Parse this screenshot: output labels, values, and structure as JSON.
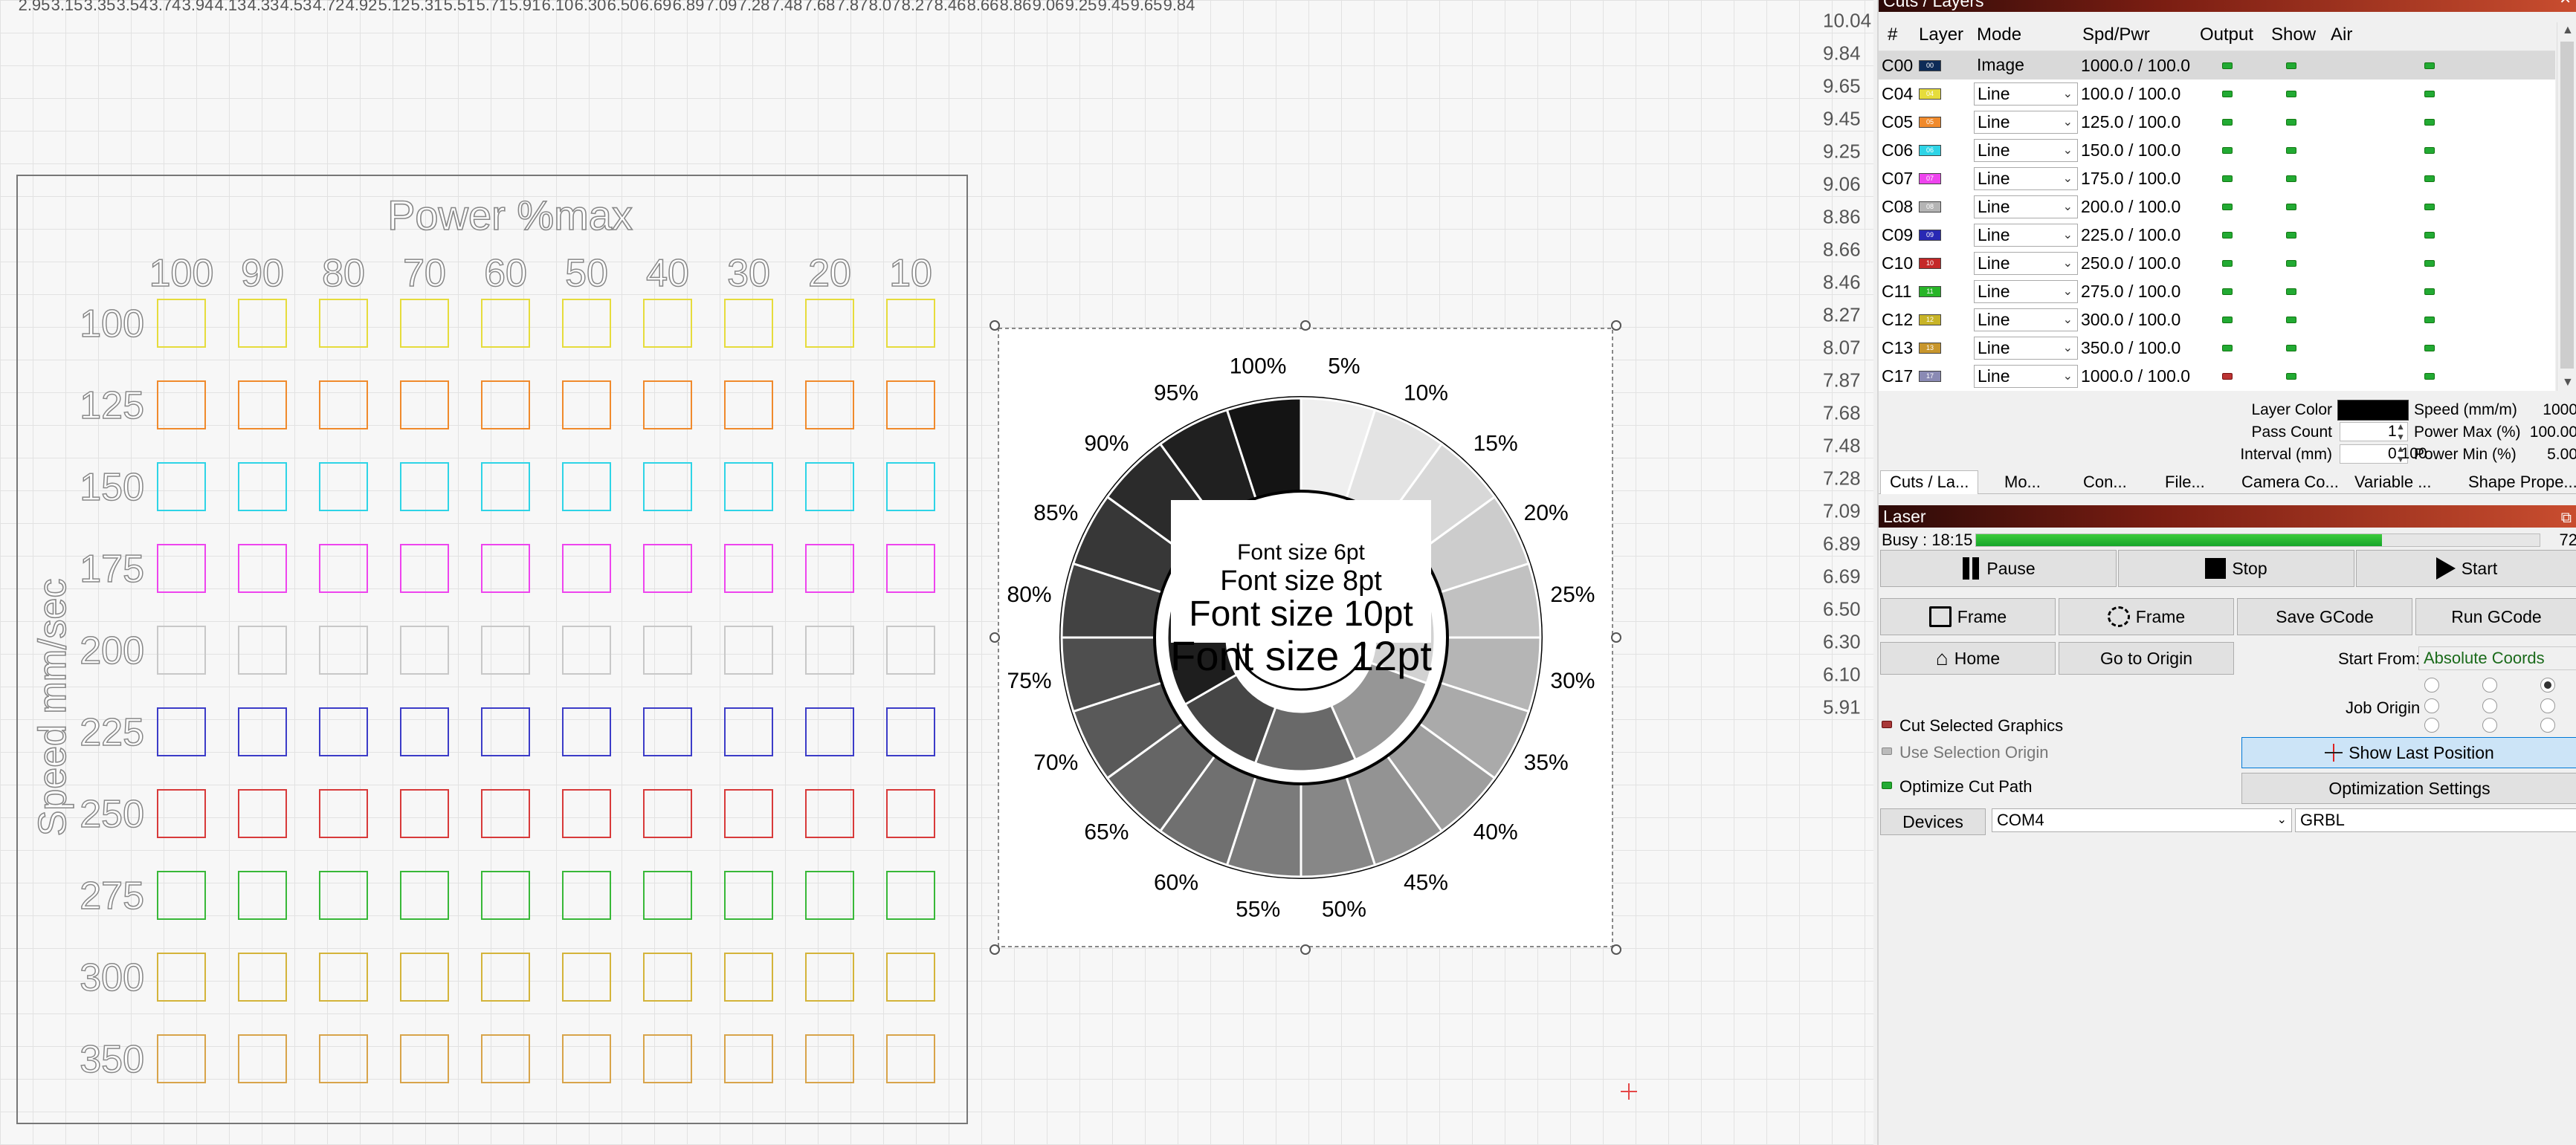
{
  "rulers": {
    "top": [
      "2.95",
      "3.15",
      "3.35",
      "3.54",
      "3.74",
      "3.94",
      "4.13",
      "4.33",
      "4.53",
      "4.72",
      "4.92",
      "5.12",
      "5.31",
      "5.51",
      "5.71",
      "5.91",
      "6.10",
      "6.30",
      "6.50",
      "6.69",
      "6.89",
      "7.09",
      "7.28",
      "7.48",
      "7.68",
      "7.87",
      "8.07",
      "8.27",
      "8.46",
      "8.66",
      "8.86",
      "9.06",
      "9.25",
      "9.45",
      "9.65",
      "9.84"
    ],
    "right": [
      "10.04",
      "9.84",
      "9.65",
      "9.45",
      "9.25",
      "9.06",
      "8.86",
      "8.66",
      "8.46",
      "8.27",
      "8.07",
      "7.87",
      "7.68",
      "7.48",
      "7.28",
      "7.09",
      "6.89",
      "6.69",
      "6.50",
      "6.30",
      "6.10",
      "5.91"
    ]
  },
  "test_grid": {
    "title": "Power %max",
    "power_labels": [
      "100",
      "90",
      "80",
      "70",
      "60",
      "50",
      "40",
      "30",
      "20",
      "10"
    ],
    "speed_axis_label": "Speed mm/sec",
    "speed_labels": [
      "100",
      "125",
      "150",
      "175",
      "200",
      "225",
      "250",
      "275",
      "300",
      "350"
    ],
    "row_colors": [
      "#e6dc3c",
      "#f08a2c",
      "#2ed4e6",
      "#ee44ee",
      "#c8c8c8",
      "#3c3cc8",
      "#d83a3a",
      "#38b838",
      "#d4b43a",
      "#d8a44a"
    ]
  },
  "wheel": {
    "percent_labels": [
      "5%",
      "10%",
      "15%",
      "20%",
      "25%",
      "30%",
      "35%",
      "40%",
      "45%",
      "50%",
      "55%",
      "60%",
      "65%",
      "70%",
      "75%",
      "80%",
      "85%",
      "90%",
      "95%",
      "100%"
    ],
    "font_lines": [
      "Font size 6pt",
      "Font size 8pt",
      "Font size 10pt",
      "Font size 12pt"
    ]
  },
  "cuts_layers": {
    "title": "Cuts / Layers",
    "headers": {
      "num": "#",
      "layer": "Layer",
      "mode": "Mode",
      "spd_pwr": "Spd/Pwr",
      "output": "Output",
      "show": "Show",
      "air": "Air"
    },
    "rows": [
      {
        "id": "C00",
        "tag": "00",
        "color": "#0d2b57",
        "mode": "Image",
        "spd_pwr": "1000.0 / 100.0",
        "selected": true,
        "dropdown": false,
        "output": "on"
      },
      {
        "id": "C04",
        "tag": "04",
        "color": "#e6dc3c",
        "mode": "Line",
        "spd_pwr": "100.0 / 100.0",
        "selected": false,
        "dropdown": true,
        "output": "on"
      },
      {
        "id": "C05",
        "tag": "05",
        "color": "#f08a2c",
        "mode": "Line",
        "spd_pwr": "125.0 / 100.0",
        "selected": false,
        "dropdown": true,
        "output": "on"
      },
      {
        "id": "C06",
        "tag": "06",
        "color": "#2ed4e6",
        "mode": "Line",
        "spd_pwr": "150.0 / 100.0",
        "selected": false,
        "dropdown": true,
        "output": "on"
      },
      {
        "id": "C07",
        "tag": "07",
        "color": "#ee44ee",
        "mode": "Line",
        "spd_pwr": "175.0 / 100.0",
        "selected": false,
        "dropdown": true,
        "output": "on"
      },
      {
        "id": "C08",
        "tag": "08",
        "color": "#b4b4b4",
        "mode": "Line",
        "spd_pwr": "200.0 / 100.0",
        "selected": false,
        "dropdown": true,
        "output": "on"
      },
      {
        "id": "C09",
        "tag": "09",
        "color": "#2828b4",
        "mode": "Line",
        "spd_pwr": "225.0 / 100.0",
        "selected": false,
        "dropdown": true,
        "output": "on"
      },
      {
        "id": "C10",
        "tag": "10",
        "color": "#c42828",
        "mode": "Line",
        "spd_pwr": "250.0 / 100.0",
        "selected": false,
        "dropdown": true,
        "output": "on"
      },
      {
        "id": "C11",
        "tag": "11",
        "color": "#28b428",
        "mode": "Line",
        "spd_pwr": "275.0 / 100.0",
        "selected": false,
        "dropdown": true,
        "output": "on"
      },
      {
        "id": "C12",
        "tag": "12",
        "color": "#c8b428",
        "mode": "Line",
        "spd_pwr": "300.0 / 100.0",
        "selected": false,
        "dropdown": true,
        "output": "on"
      },
      {
        "id": "C13",
        "tag": "13",
        "color": "#c8962c",
        "mode": "Line",
        "spd_pwr": "350.0 / 100.0",
        "selected": false,
        "dropdown": true,
        "output": "on"
      },
      {
        "id": "C17",
        "tag": "17",
        "color": "#8a8ab4",
        "mode": "Line",
        "spd_pwr": "1000.0 / 100.0",
        "selected": false,
        "dropdown": true,
        "output": "off"
      }
    ]
  },
  "layer_props": {
    "layer_color_label": "Layer Color",
    "layer_color": "#000000",
    "pass_count_label": "Pass Count",
    "pass_count": "1",
    "interval_label": "Interval (mm)",
    "interval": "0.100",
    "speed_label": "Speed (mm/m)",
    "speed": "1000",
    "power_max_label": "Power Max (%)",
    "power_max": "100.00",
    "power_min_label": "Power Min (%)",
    "power_min": "5.00"
  },
  "tabs": [
    "Cuts / La...",
    "Mo...",
    "Con...",
    "File...",
    "Camera Co...",
    "Variable ...",
    "Shape Prope..."
  ],
  "laser": {
    "title": "Laser",
    "busy_label": "Busy : 18:15",
    "busy_value": "72",
    "progress": 0.72,
    "pause": "Pause",
    "stop": "Stop",
    "start": "Start",
    "frame1": "Frame",
    "frame2": "Frame",
    "save_gcode": "Save GCode",
    "run_gcode": "Run GCode",
    "home": "Home",
    "go_to_origin": "Go to Origin",
    "start_from_label": "Start From:",
    "start_from_value": "Absolute Coords",
    "job_origin_label": "Job Origin",
    "cut_selected": "Cut Selected Graphics",
    "use_selection_origin": "Use Selection Origin",
    "optimize_cut_path": "Optimize Cut Path",
    "show_last_position": "Show Last Position",
    "optimization_settings": "Optimization Settings",
    "devices": "Devices",
    "port": "COM4",
    "controller": "GRBL"
  }
}
